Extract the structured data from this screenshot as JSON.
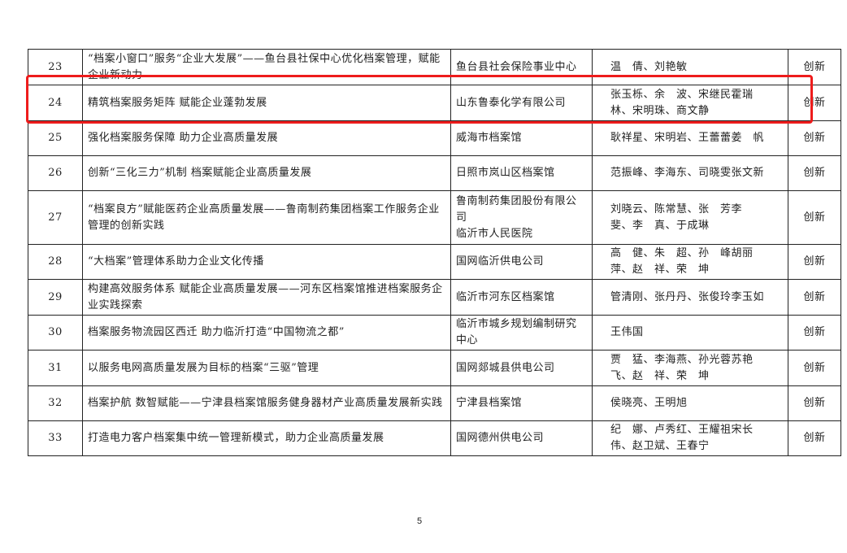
{
  "highlight_color": "#ee1c1c",
  "rows": [
    {
      "no": "23",
      "title": "“档案小窗口”服务“企业大发展”——鱼台县社保中心优化档案管理，赋能企业新动力",
      "org": "鱼台县社会保险事业中心",
      "people": "温　倩、刘艳敏",
      "type": "创新"
    },
    {
      "no": "24",
      "title": "精筑档案服务矩阵 赋能企业蓬勃发展",
      "org": "山东鲁泰化学有限公司",
      "people": "张玉栎、余　波、宋继民霍瑞林、宋明珠、商文静",
      "type": "创新"
    },
    {
      "no": "25",
      "title": "强化档案服务保障 助力企业高质量发展",
      "org": "威海市档案馆",
      "people": "耿祥星、宋明岩、王蕾蕾姜　帆",
      "type": "创新"
    },
    {
      "no": "26",
      "title": "创新“三化三力”机制 档案赋能企业高质量发展",
      "org": "日照市岚山区档案馆",
      "people": "范振峰、李海东、司晓雯张文新",
      "type": "创新"
    },
    {
      "no": "27",
      "title": "“档案良方”赋能医药企业高质量发展——鲁南制药集团档案工作服务企业管理的创新实践",
      "org": "鲁南制药集团股份有限公司\n临沂市人民医院",
      "people": "刘晓云、陈常慧、张　芳李　斐、李　真、于成琳",
      "type": "创新"
    },
    {
      "no": "28",
      "title": "“大档案”管理体系助力企业文化传播",
      "org": "国网临沂供电公司",
      "people": "高　健、朱　超、孙　峰胡丽萍、赵　祥、荣　坤",
      "type": "创新"
    },
    {
      "no": "29",
      "title": "构建高效服务体系 赋能企业高质量发展——河东区档案馆推进档案服务企业实践探索",
      "org": "临沂市河东区档案馆",
      "people": "管清刚、张丹丹、张俊玲李玉如",
      "type": "创新"
    },
    {
      "no": "30",
      "title": "档案服务物流园区西迁 助力临沂打造“中国物流之都”",
      "org": "临沂市城乡规划编制研究中心",
      "people": "王伟国",
      "type": "创新"
    },
    {
      "no": "31",
      "title": "以服务电网高质量发展为目标的档案“三驱”管理",
      "org": "国网郯城县供电公司",
      "people": "贾　猛、李海燕、孙光蓉苏艳飞、赵　祥、荣　坤",
      "type": "创新"
    },
    {
      "no": "32",
      "title": "档案护航 数智赋能——宁津县档案馆服务健身器材产业高质量发展新实践",
      "org": "宁津县档案馆",
      "people": "侯晓亮、王明旭",
      "type": "创新"
    },
    {
      "no": "33",
      "title": "打造电力客户档案集中统一管理新模式，助力企业高质量发展",
      "org": "国网德州供电公司",
      "people": "纪　娜、卢秀红、王耀祖宋长伟、赵卫斌、王春宁",
      "type": "创新"
    }
  ],
  "page_number": "5"
}
